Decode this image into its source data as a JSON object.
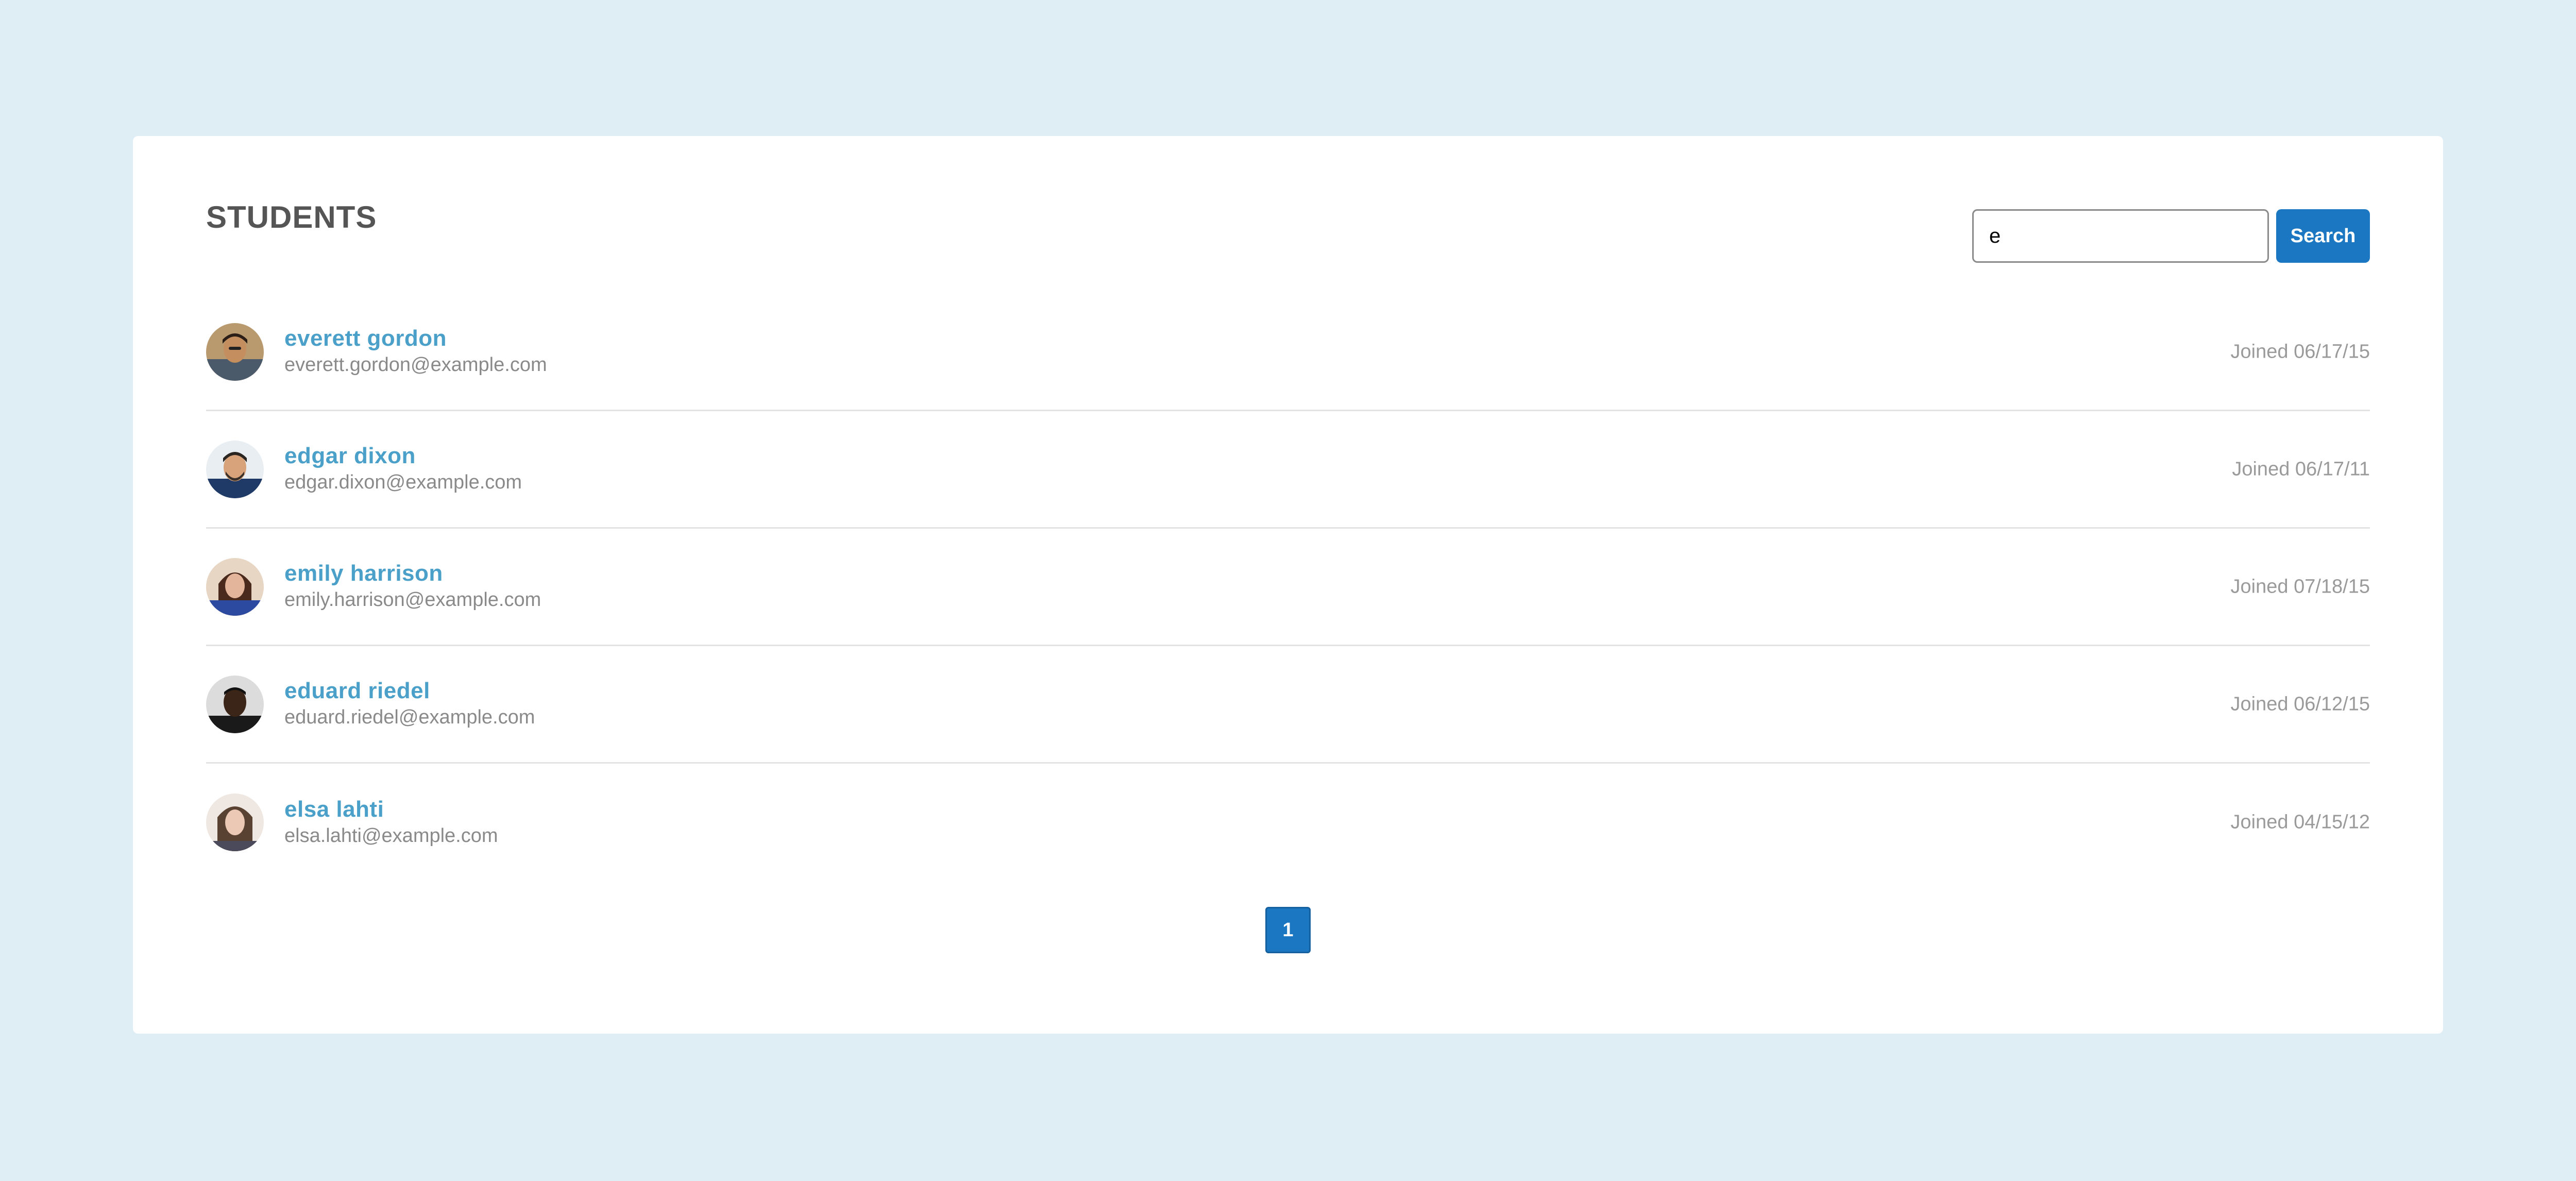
{
  "page": {
    "title": "STUDENTS"
  },
  "search": {
    "value": "e",
    "placeholder": "",
    "button_label": "Search"
  },
  "students": [
    {
      "name": "everett gordon",
      "email": "everett.gordon@example.com",
      "joined": "Joined 06/17/15",
      "avatar_icon": "person-avatar-icon"
    },
    {
      "name": "edgar dixon",
      "email": "edgar.dixon@example.com",
      "joined": "Joined 06/17/11",
      "avatar_icon": "person-avatar-icon"
    },
    {
      "name": "emily harrison",
      "email": "emily.harrison@example.com",
      "joined": "Joined 07/18/15",
      "avatar_icon": "person-avatar-icon"
    },
    {
      "name": "eduard riedel",
      "email": "eduard.riedel@example.com",
      "joined": "Joined 06/12/15",
      "avatar_icon": "person-avatar-icon"
    },
    {
      "name": "elsa lahti",
      "email": "elsa.lahti@example.com",
      "joined": "Joined 04/15/12",
      "avatar_icon": "person-avatar-icon"
    }
  ],
  "pagination": {
    "pages": [
      "1"
    ],
    "current": "1"
  },
  "colors": {
    "background": "#dfeef5",
    "card": "#ffffff",
    "accent": "#1b77c2",
    "name_link": "#4aa0c8",
    "title": "#555555",
    "muted": "#8a8a8a"
  }
}
